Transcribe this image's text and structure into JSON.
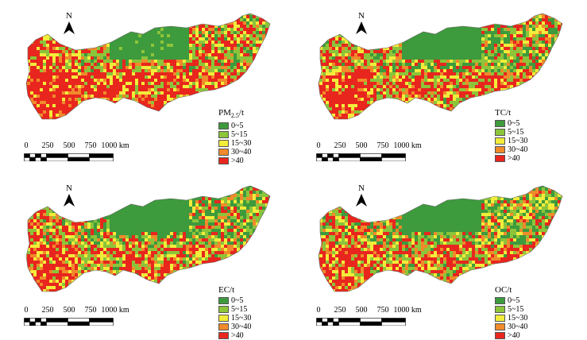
{
  "panels": [
    {
      "id": "pm25",
      "legend_title_main": "PM",
      "legend_title_sub": "2.5",
      "legend_title_suffix": "/t",
      "intensity": 0.72
    },
    {
      "id": "tc",
      "legend_title_main": "TC/t",
      "legend_title_sub": "",
      "legend_title_suffix": "",
      "intensity": 0.48
    },
    {
      "id": "ec",
      "legend_title_main": "EC/t",
      "legend_title_sub": "",
      "legend_title_suffix": "",
      "intensity": 0.45
    },
    {
      "id": "oc",
      "legend_title_main": "OC/t",
      "legend_title_sub": "",
      "legend_title_suffix": "",
      "intensity": 0.4
    }
  ],
  "legend_classes": [
    {
      "label": "0~5",
      "color": "#3d9a3d"
    },
    {
      "label": "5~15",
      "color": "#8cc43a"
    },
    {
      "label": "15~30",
      "color": "#f2ec3a"
    },
    {
      "label": "30~40",
      "color": "#f08a2a"
    },
    {
      "label": ">40",
      "color": "#e8261e"
    }
  ],
  "north_label": "N",
  "scale_labels": [
    "0",
    "250",
    "500",
    "750",
    "1000 km"
  ]
}
